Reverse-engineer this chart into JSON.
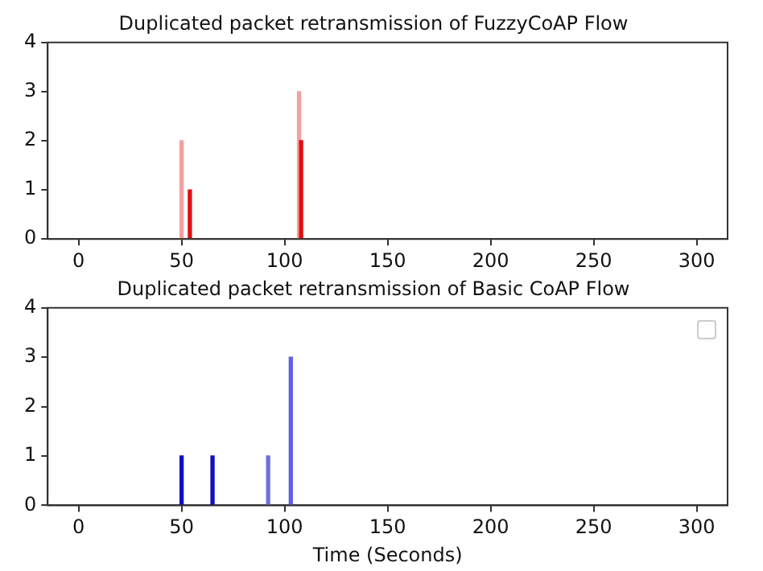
{
  "chart_data": [
    {
      "type": "bar",
      "title": "Duplicated packet retransmission of FuzzyCoAP Flow",
      "x": [
        50,
        54,
        107,
        108
      ],
      "values": [
        2,
        1,
        3,
        2
      ],
      "colors": [
        "#f4a0a0",
        "#e01010",
        "#f4a0a0",
        "#e01010"
      ],
      "xlim": [
        -15,
        315
      ],
      "xticks": [
        0,
        50,
        100,
        150,
        200,
        250,
        300
      ],
      "ylim": [
        0,
        4
      ],
      "yticks": [
        0,
        1,
        2,
        3,
        4
      ]
    },
    {
      "type": "bar",
      "title": "Duplicated packet retransmission of Basic CoAP Flow",
      "xlabel": "Time (Seconds)",
      "x": [
        50,
        65,
        92,
        103
      ],
      "values": [
        1,
        1,
        1,
        3
      ],
      "colors": [
        "#1010c0",
        "#1010c0",
        "#7070d8",
        "#6060e0"
      ],
      "xlim": [
        -15,
        315
      ],
      "xticks": [
        0,
        50,
        100,
        150,
        200,
        250,
        300
      ],
      "ylim": [
        0,
        4
      ],
      "yticks": [
        0,
        1,
        2,
        3,
        4
      ]
    }
  ]
}
